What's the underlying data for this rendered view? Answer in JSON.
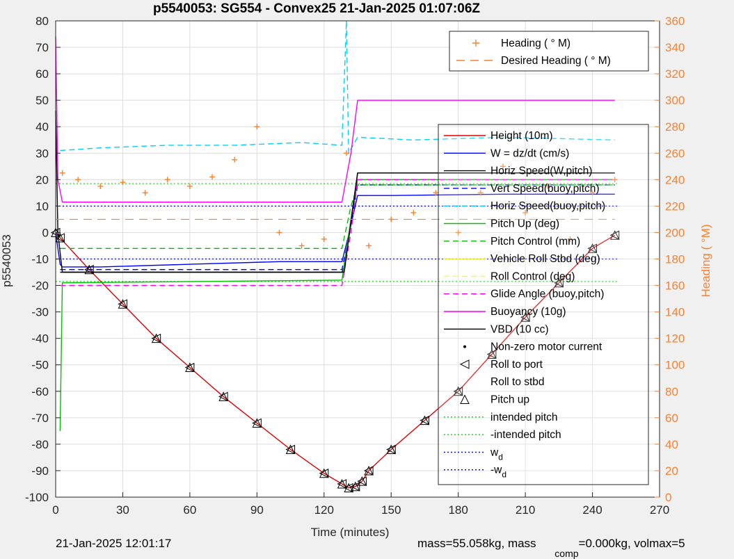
{
  "chart_data": {
    "type": "line",
    "title": "p5540053: SG554 - Convex25 21-Jan-2025 01:07:06Z",
    "xlabel": "Time (minutes)",
    "ylabel": "p5540053",
    "ylabel_right": "Heading (  °M)",
    "xlim": [
      0,
      270
    ],
    "ylim": [
      -100,
      80
    ],
    "ylim_right": [
      0,
      360
    ],
    "xticks": [
      "0",
      "30",
      "60",
      "90",
      "120",
      "150",
      "180",
      "210",
      "240",
      "270"
    ],
    "yticks": [
      "80",
      "70",
      "60",
      "50",
      "40",
      "30",
      "20",
      "10",
      "0",
      "-10",
      "-20",
      "-30",
      "-40",
      "-50",
      "-60",
      "-70",
      "-80",
      "-90",
      "-100"
    ],
    "yticks_right": [
      "360",
      "340",
      "320",
      "300",
      "280",
      "260",
      "240",
      "220",
      "200",
      "180",
      "160",
      "140",
      "120",
      "100",
      "80",
      "60",
      "40",
      "20",
      "0"
    ],
    "grid": true,
    "legend_top": {
      "placement": "top-right",
      "entries": [
        {
          "label": "Heading (  ° M)",
          "color": "#ff7f2a",
          "marker": "+"
        },
        {
          "label": "Desired Heading (    ° M)",
          "color": "#ff7f2a",
          "style": "dashed"
        }
      ]
    },
    "legend_main": {
      "placement": "right",
      "entries": [
        {
          "label": "Height (10m)",
          "color": "#e00000",
          "style": "solid"
        },
        {
          "label": "W = dz/dt (cm/s)",
          "color": "#0000ff",
          "style": "solid"
        },
        {
          "label": "Horiz Speed(W,pitch)",
          "color": "#000000",
          "style": "solid"
        },
        {
          "label": "Vert Speed(buoy,pitch)",
          "color": "#0000ff",
          "style": "dashed"
        },
        {
          "label": "Horiz Speed(buoy,pitch)",
          "color": "#00d0ff",
          "style": "dashed"
        },
        {
          "label": "Pitch Up (deg)",
          "color": "#00c000",
          "style": "solid"
        },
        {
          "label": "Pitch Control (mm)",
          "color": "#00c000",
          "style": "dashed"
        },
        {
          "label": "Vehicle Roll Stbd (deg)",
          "color": "#ffff00",
          "style": "solid"
        },
        {
          "label": "Roll Control (deg)",
          "color": "#ffff00",
          "style": "dashed"
        },
        {
          "label": "Glide Angle (buoy,pitch)",
          "color": "#ff00ff",
          "style": "dashed"
        },
        {
          "label": "Buoyancy (10g)",
          "color": "#ff00ff",
          "style": "solid"
        },
        {
          "label": "VBD (10 cc)",
          "color": "#000000",
          "style": "solid"
        },
        {
          "label": "Non-zero motor current",
          "color": "#000000",
          "marker": "dot"
        },
        {
          "label": "Roll to port",
          "color": "#000000",
          "marker": "triangle-left"
        },
        {
          "label": "Roll to stbd",
          "color": "#000000",
          "marker": "triangle-right"
        },
        {
          "label": "Pitch up",
          "color": "#000000",
          "marker": "triangle-up"
        },
        {
          "label": "intended pitch",
          "color": "#00dd00",
          "style": "dotted"
        },
        {
          "label": "-intended pitch",
          "color": "#00dd00",
          "style": "dotted"
        },
        {
          "label": "w",
          "sub": "d",
          "color": "#0000ff",
          "style": "dotted"
        },
        {
          "label": "-w",
          "sub": "d",
          "color": "#0000ff",
          "style": "dotted"
        }
      ]
    },
    "reference_lines": [
      {
        "name": "intended pitch",
        "y": 18.5,
        "color": "#00dd00"
      },
      {
        "name": "-intended pitch",
        "y": -18.5,
        "color": "#00dd00"
      },
      {
        "name": "w_d",
        "y": 10,
        "color": "#0000ff"
      },
      {
        "name": "-w_d",
        "y": -10,
        "color": "#0000ff"
      }
    ],
    "series": [
      {
        "name": "Height (10m)",
        "color": "#e00000",
        "x": [
          0,
          2,
          15,
          30,
          45,
          60,
          75,
          90,
          105,
          120,
          128,
          131,
          134,
          137,
          140,
          150,
          165,
          180,
          195,
          210,
          225,
          240,
          250
        ],
        "y": [
          0,
          -2,
          -14,
          -27,
          -40,
          -51,
          -62,
          -72,
          -82,
          -91,
          -95,
          -96.5,
          -96,
          -94,
          -90,
          -82,
          -71,
          -60,
          -46,
          -32,
          -19,
          -6,
          -1
        ]
      },
      {
        "name": "W = dz/dt (cm/s)",
        "color": "#0000ff",
        "x": [
          0,
          2,
          3,
          20,
          60,
          100,
          128,
          131,
          135,
          150,
          200,
          250
        ],
        "y": [
          0,
          -12,
          -13,
          -13,
          -12,
          -11,
          -11,
          -1,
          14,
          14,
          14.5,
          14.5
        ]
      },
      {
        "name": "Horiz Speed(W,pitch)",
        "color": "#000000",
        "x": [
          2,
          3,
          128,
          129,
          135,
          250
        ],
        "y": [
          -15,
          -15,
          -15,
          -13,
          22.5,
          22.5
        ]
      },
      {
        "name": "Vert Speed(buoy,pitch)",
        "color": "#0000ff",
        "x": [
          2,
          128,
          131,
          135,
          250
        ],
        "y": [
          -14,
          -14,
          -2,
          18,
          18
        ]
      },
      {
        "name": "Horiz Speed(buoy,pitch)",
        "color": "#00d0ff",
        "x": [
          2,
          20,
          50,
          80,
          110,
          128,
          130,
          131,
          135,
          160,
          200,
          250
        ],
        "y": [
          31,
          32,
          33,
          33,
          34,
          33,
          80,
          30,
          36,
          35,
          36,
          35
        ]
      },
      {
        "name": "Pitch Up (deg)",
        "color": "#00c000",
        "x": [
          2,
          3,
          128,
          132,
          135,
          250
        ],
        "y": [
          -75,
          -19,
          -18,
          5,
          20,
          20
        ]
      },
      {
        "name": "Pitch Control (mm)",
        "color": "#00c000",
        "x": [
          2,
          128,
          132,
          135,
          250
        ],
        "y": [
          -6,
          -6,
          10,
          18,
          18
        ]
      },
      {
        "name": "Glide Angle (buoy,pitch)",
        "color": "#ff00ff",
        "x": [
          2,
          128,
          132,
          135,
          250
        ],
        "y": [
          -20,
          -20,
          0,
          20,
          20
        ]
      },
      {
        "name": "Buoyancy (10g)",
        "color": "#ff00ff",
        "x": [
          0,
          1,
          3,
          128,
          132,
          135,
          250
        ],
        "y": [
          74,
          20,
          11.5,
          11.5,
          30,
          50,
          50
        ]
      },
      {
        "name": "VBD (10 cc)",
        "color": "#000000",
        "x": [
          0,
          1,
          3,
          128,
          129,
          135,
          250
        ],
        "y": [
          46,
          0,
          -15,
          -15,
          -15,
          22.5,
          22.5
        ]
      },
      {
        "name": "Heading (° M)",
        "color": "#ff7f2a",
        "axis": "right",
        "x": [
          3,
          10,
          20,
          30,
          40,
          50,
          60,
          70,
          80,
          90,
          100,
          110,
          120,
          130,
          140,
          150,
          160,
          170,
          180,
          190,
          200,
          210,
          220,
          230,
          240,
          250
        ],
        "y": [
          245,
          240,
          235,
          238,
          230,
          240,
          235,
          242,
          255,
          280,
          200,
          190,
          195,
          260,
          190,
          210,
          215,
          230,
          200,
          230,
          250,
          215,
          235,
          195,
          230,
          240
        ]
      },
      {
        "name": "Desired Heading (° M)",
        "color": "#ff7f2a",
        "axis": "right",
        "x": [
          0,
          250
        ],
        "y": [
          210,
          210
        ]
      }
    ]
  },
  "footer": {
    "date": "21-Jan-2025 12:01:17",
    "mass": "mass=55.058kg, mass",
    "comp_sub": "comp",
    "comp_rest": "=0.000kg, volmax=5"
  }
}
